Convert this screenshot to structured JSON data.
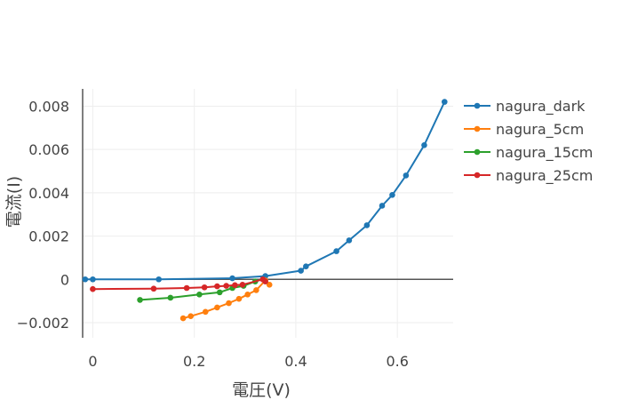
{
  "chart_data": {
    "type": "line",
    "title": "",
    "xlabel": "電圧(V)",
    "ylabel": "電流(I)",
    "xlim": [
      -0.02,
      0.71
    ],
    "ylim": [
      -0.0027,
      0.0088
    ],
    "grid": true,
    "legend": "right",
    "x_ticks": [
      0,
      0.2,
      0.4,
      0.6
    ],
    "x_tick_labels": [
      "0",
      "0.2",
      "0.4",
      "0.6"
    ],
    "y_ticks": [
      -0.002,
      0,
      0.002,
      0.004,
      0.006,
      0.008
    ],
    "y_tick_labels": [
      "−0.002",
      "0",
      "0.002",
      "0.004",
      "0.006",
      "0.008"
    ],
    "series": [
      {
        "name": "nagura_dark",
        "color": "#1f77b4",
        "x": [
          -0.015,
          0.0,
          0.13,
          0.275,
          0.34,
          0.41,
          0.42,
          0.48,
          0.505,
          0.54,
          0.57,
          0.59,
          0.617,
          0.653,
          0.693
        ],
        "y": [
          0.0,
          0.0,
          0.0,
          5e-05,
          0.00015,
          0.0004,
          0.0006,
          0.0013,
          0.0018,
          0.0025,
          0.0034,
          0.0039,
          0.0048,
          0.0062,
          0.0082
        ]
      },
      {
        "name": "nagura_5cm",
        "color": "#ff7f0e",
        "x": [
          0.178,
          0.193,
          0.222,
          0.245,
          0.268,
          0.288,
          0.305,
          0.322,
          0.34,
          0.348
        ],
        "y": [
          -0.0018,
          -0.0017,
          -0.0015,
          -0.0013,
          -0.0011,
          -0.0009,
          -0.0007,
          -0.0005,
          -5e-05,
          -0.00025
        ]
      },
      {
        "name": "nagura_15cm",
        "color": "#2ca02c",
        "x": [
          0.093,
          0.153,
          0.21,
          0.25,
          0.275,
          0.297,
          0.32
        ],
        "y": [
          -0.00095,
          -0.00085,
          -0.0007,
          -0.0006,
          -0.0004,
          -0.0003,
          -0.0001
        ]
      },
      {
        "name": "nagura_25cm",
        "color": "#d62728",
        "x": [
          0.0,
          0.12,
          0.185,
          0.22,
          0.245,
          0.263,
          0.28,
          0.295,
          0.335,
          0.34
        ],
        "y": [
          -0.00045,
          -0.00043,
          -0.0004,
          -0.00037,
          -0.00032,
          -0.0003,
          -0.00027,
          -0.00025,
          0.0,
          -0.0001
        ]
      }
    ]
  }
}
